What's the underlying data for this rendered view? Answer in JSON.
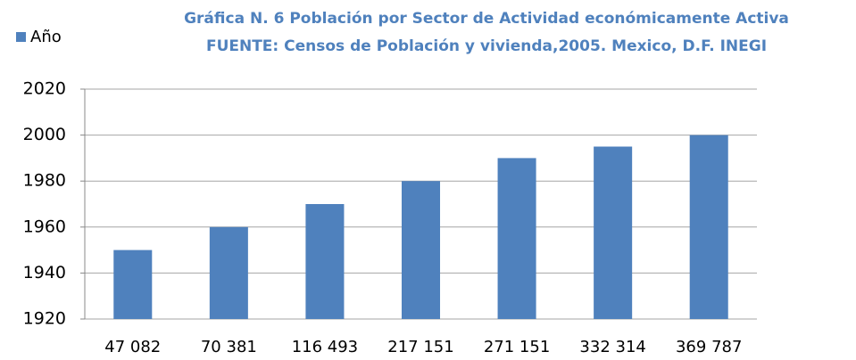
{
  "chart_data": {
    "type": "bar",
    "title": "Gráfica N. 6 Población por Sector de Actividad económicamente Activa",
    "subtitle": "FUENTE: Censos de Población y vivienda,2005. Mexico, D.F. INEGI",
    "categories": [
      "47 082",
      "70 381",
      "116 493",
      "217 151",
      "271 151",
      "332 314",
      "369 787"
    ],
    "series": [
      {
        "name": "Año",
        "color": "#4f81bd",
        "values": [
          1950,
          1960,
          1970,
          1980,
          1990,
          1995,
          2000
        ]
      }
    ],
    "ylim": [
      1920,
      2020
    ],
    "yticks": [
      1920,
      1940,
      1960,
      1980,
      2000,
      2020
    ],
    "grid": true,
    "legend": "top-left"
  }
}
